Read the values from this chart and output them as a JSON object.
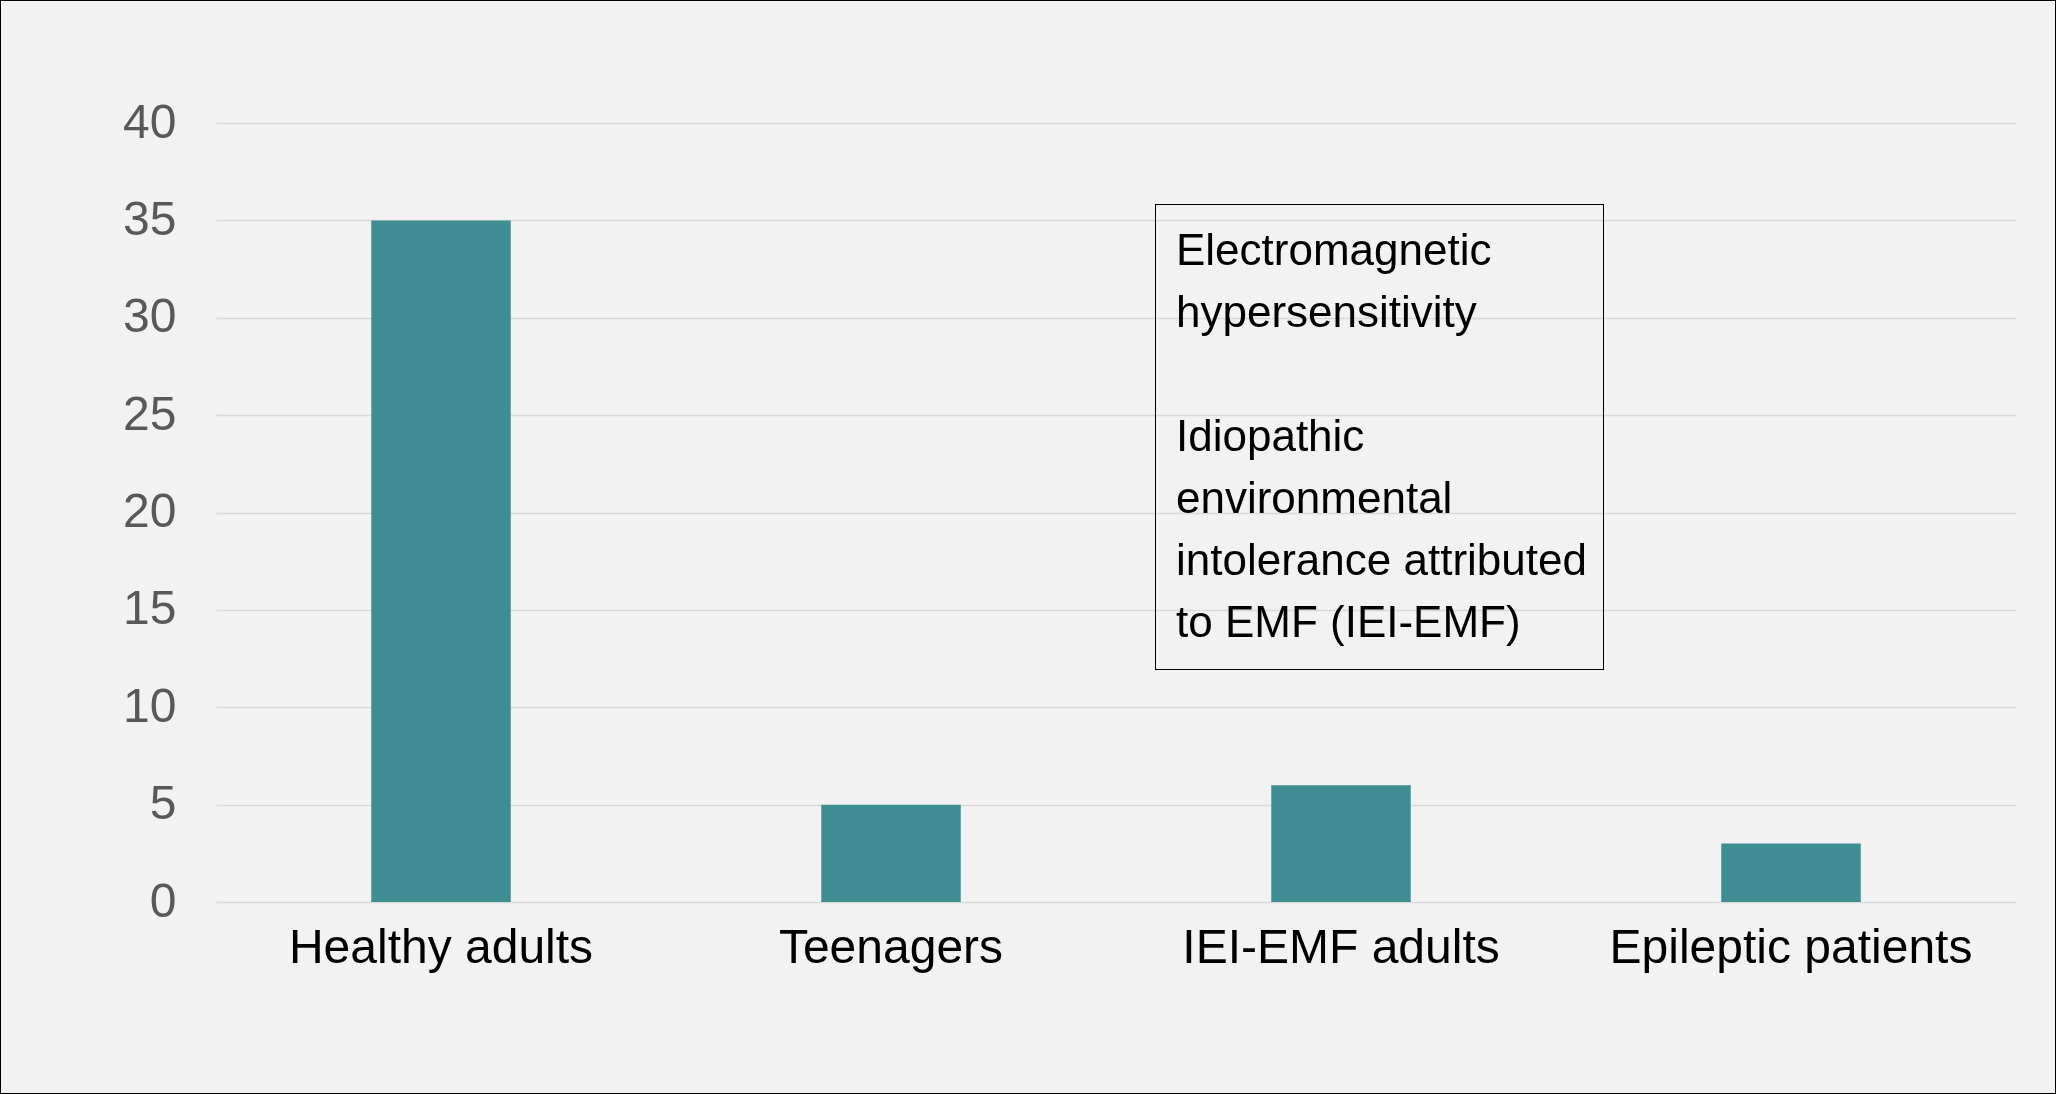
{
  "chart_data": {
    "type": "bar",
    "categories": [
      "Healthy adults",
      "Teenagers",
      "IEI-EMF adults",
      "Epileptic patients"
    ],
    "values": [
      35,
      5,
      6,
      3
    ],
    "color": "#3e8e93",
    "ylim": [
      0,
      40
    ],
    "yticks": [
      0,
      5,
      10,
      15,
      20,
      25,
      30,
      35,
      40
    ],
    "grid": "y",
    "annotations": [
      "Electromagnetic hypersensitivity",
      "Idiopathic environmental intolerance attributed to EMF (IEI-EMF)"
    ]
  }
}
